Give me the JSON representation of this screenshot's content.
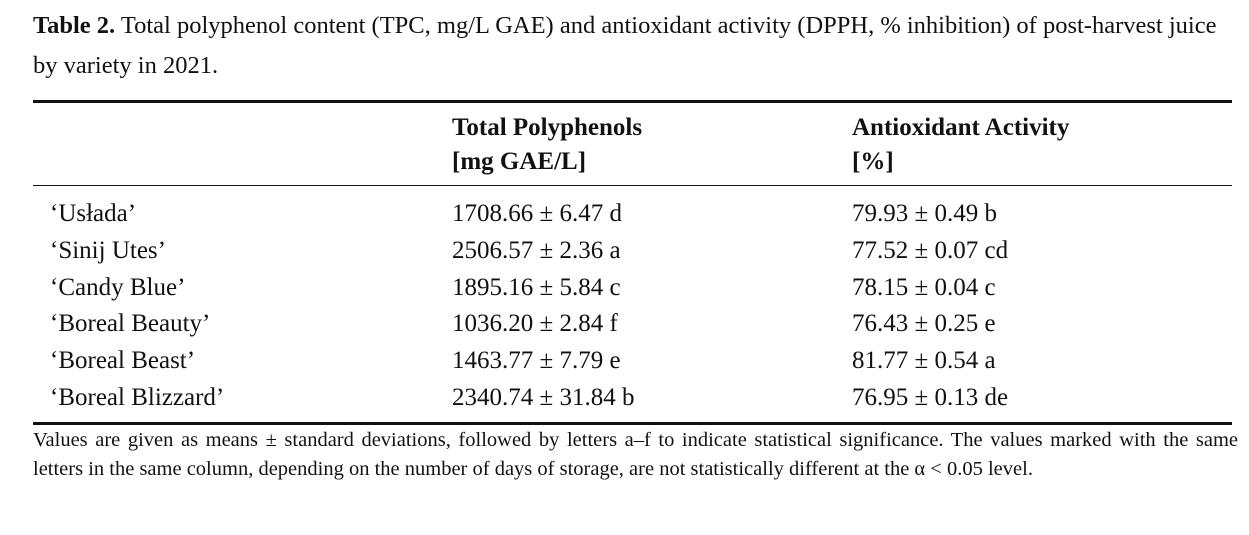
{
  "caption": {
    "label": "Table 2.",
    "text": "Total polyphenol content (TPC, mg/L GAE) and antioxidant activity (DPPH, % inhibition) of post-harvest juice by variety in 2021."
  },
  "table": {
    "header": [
      [
        "Total Polyphenols",
        "[mg GAE/L]"
      ],
      [
        "Antioxidant Activity",
        "[%]"
      ]
    ],
    "rows": [
      [
        "‘Usłada’",
        "1708.66 ± 6.47 d",
        "79.93 ± 0.49 b"
      ],
      [
        "‘Sinij Utes’",
        "2506.57 ± 2.36 a",
        "77.52 ± 0.07 cd"
      ],
      [
        "‘Candy Blue’",
        "1895.16 ± 5.84 c",
        "78.15 ± 0.04 c"
      ],
      [
        "‘Boreal Beauty’",
        "1036.20 ± 2.84 f",
        "76.43 ± 0.25 e"
      ],
      [
        "‘Boreal Beast’",
        "1463.77 ± 7.79 e",
        "81.77 ± 0.54 a"
      ],
      [
        "‘Boreal Blizzard’",
        "2340.74 ± 31.84 b",
        "76.95 ± 0.13 de"
      ]
    ]
  },
  "footnote": "Values are given as means ± standard deviations, followed by letters a–f to indicate statistical significance. The values marked with the same letters in the same column, depending on the number of days of storage, are not statistically different at the α < 0.05 level."
}
